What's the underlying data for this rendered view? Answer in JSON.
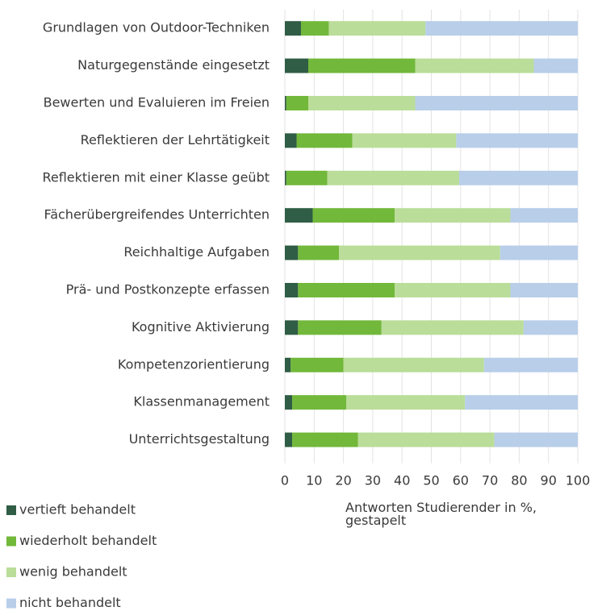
{
  "chart_data": {
    "type": "bar",
    "orientation": "horizontal",
    "stacked": true,
    "categories": [
      "Grundlagen von Outdoor-Techniken",
      "Naturgegenstände eingesetzt",
      "Bewerten und Evaluieren im Freien",
      "Reflektieren der Lehrtätigkeit",
      "Reflektieren mit einer Klasse geübt",
      "Fächerübergreifendes Unterrichten",
      "Reichhaltige Aufgaben",
      "Prä- und Postkonzepte erfassen",
      "Kognitive Aktivierung",
      "Kompetenzorientierung",
      "Klassenmanagement",
      "Unterrichtsgestaltung"
    ],
    "series": [
      {
        "name": "vertieft behandelt",
        "color": "#2f5d45",
        "values": [
          5.5,
          8,
          0.5,
          4,
          0.5,
          9.5,
          4.5,
          4.5,
          4.5,
          2,
          2.5,
          2.5
        ]
      },
      {
        "name": "wiederholt behandelt",
        "color": "#72b83a",
        "values": [
          9.5,
          36.5,
          7.5,
          19,
          14,
          28,
          14,
          33,
          28.5,
          18,
          18.5,
          22.5
        ]
      },
      {
        "name": "wenig behandelt",
        "color": "#badd99",
        "values": [
          33,
          40.5,
          36.5,
          35.5,
          45,
          39.5,
          55,
          39.5,
          48.5,
          48,
          40.5,
          46.5
        ]
      },
      {
        "name": "nicht behandelt",
        "color": "#b8cee9",
        "values": [
          52,
          15,
          55.5,
          41.5,
          40.5,
          23,
          26.5,
          23,
          18.5,
          32,
          38.5,
          28.5
        ]
      }
    ],
    "xlabel": "Antworten Studierender in %, gestapelt",
    "xlim": [
      0,
      100
    ],
    "xticks": [
      0,
      10,
      20,
      30,
      40,
      50,
      60,
      70,
      80,
      90,
      100
    ],
    "grid": true,
    "legend": "bottom-left"
  }
}
